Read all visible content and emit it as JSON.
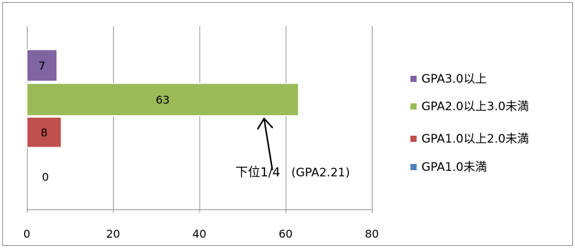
{
  "chart_data": {
    "type": "bar",
    "orientation": "horizontal",
    "stacked": true,
    "xlim": [
      0,
      80
    ],
    "xticks": [
      0,
      20,
      40,
      60,
      80
    ],
    "grid": true,
    "legend_position": "right",
    "series": [
      {
        "name": "GPA1.0未満",
        "value": 0,
        "label": "0",
        "color": "#4F81BD"
      },
      {
        "name": "GPA1.0以上2.0未満",
        "value": 8,
        "label": "8",
        "color": "#C0504D"
      },
      {
        "name": "GPA2.0以上3.0未満",
        "value": 63,
        "label": "63",
        "color": "#9BBB59"
      },
      {
        "name": "GPA3.0以上",
        "value": 7,
        "label": "7",
        "color": "#8064A2"
      }
    ],
    "legend_order": [
      "GPA3.0以上",
      "GPA2.0以上3.0未満",
      "GPA1.0以上2.0未満",
      "GPA1.0未満"
    ],
    "annotation": {
      "text": "下位1/4",
      "detail": "(GPA2.21)",
      "x": 55
    }
  }
}
